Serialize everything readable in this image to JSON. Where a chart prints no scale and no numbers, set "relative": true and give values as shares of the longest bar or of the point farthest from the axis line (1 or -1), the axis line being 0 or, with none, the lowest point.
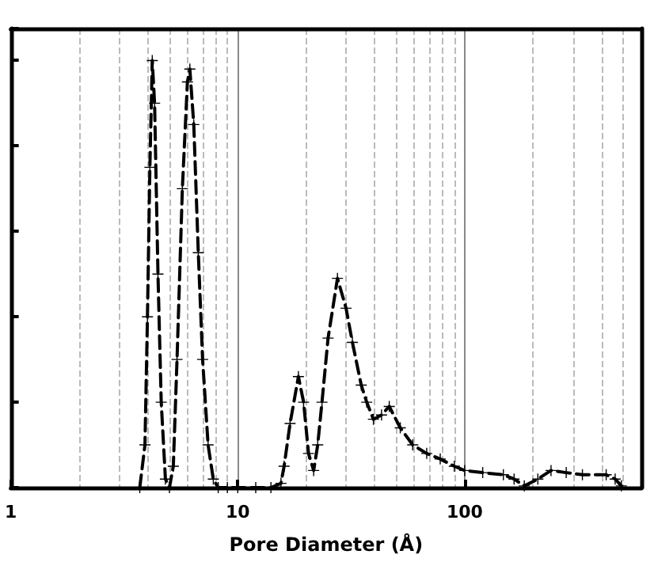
{
  "chart_data": {
    "type": "line",
    "xlabel": "Pore Diameter (Å)",
    "relative": true,
    "log": "x",
    "xlim": [
      1,
      600
    ],
    "xticks": [
      1,
      10,
      100
    ],
    "grid": "x",
    "tick_labels": "x",
    "marker": "cross",
    "line_style": "dashed",
    "series": [
      {
        "color": "#000000",
        "x": [
          3.7,
          3.9,
          4.0,
          4.1,
          4.2,
          4.3,
          4.45,
          4.6,
          4.8,
          5.0,
          5.2,
          5.4,
          5.7,
          6.0,
          6.15,
          6.4,
          6.7,
          7.0,
          7.4,
          7.8,
          8.2,
          9,
          10,
          12,
          14,
          15.5,
          16,
          17,
          18.5,
          19.5,
          20.5,
          21.6,
          22.5,
          23.5,
          25,
          27.5,
          30,
          32,
          35,
          37,
          39.6,
          43,
          46.5,
          52,
          59,
          68,
          78,
          90,
          100,
          120,
          148,
          165,
          183,
          210,
          240,
          280,
          330,
          420,
          460,
          490
        ],
        "values": [
          0,
          0.1,
          0.4,
          0.75,
          1.0,
          0.9,
          0.5,
          0.2,
          0.02,
          0,
          0.05,
          0.3,
          0.7,
          0.95,
          0.98,
          0.85,
          0.55,
          0.3,
          0.1,
          0.02,
          0,
          0,
          0,
          0,
          0,
          0.01,
          0.05,
          0.15,
          0.26,
          0.2,
          0.08,
          0.04,
          0.1,
          0.2,
          0.35,
          0.49,
          0.42,
          0.34,
          0.24,
          0.2,
          0.16,
          0.17,
          0.19,
          0.14,
          0.1,
          0.08,
          0.067,
          0.05,
          0.04,
          0.035,
          0.03,
          0.02,
          0.004,
          0.02,
          0.04,
          0.035,
          0.03,
          0.03,
          0.02,
          0.004
        ]
      }
    ]
  }
}
